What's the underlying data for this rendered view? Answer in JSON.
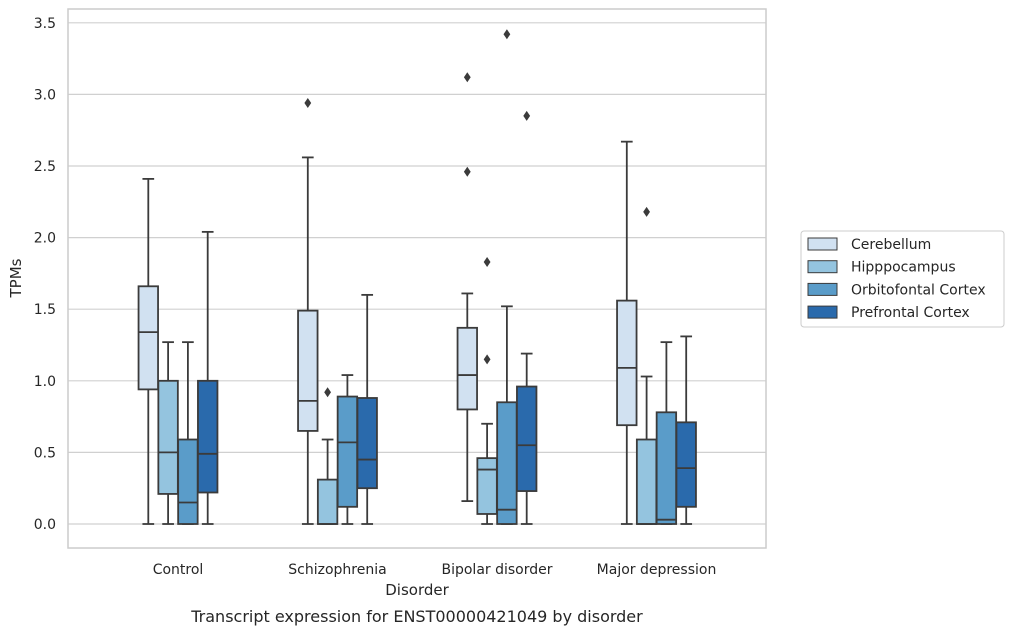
{
  "chart_data": {
    "type": "box",
    "title": "",
    "caption": "Transcript expression for ENST00000421049 by disorder",
    "xlabel": "Disorder",
    "ylabel": "TPMs",
    "ylim": [
      -0.16,
      3.6
    ],
    "yticks": [
      "0.0",
      "0.5",
      "1.0",
      "1.5",
      "2.0",
      "2.5",
      "3.0",
      "3.5"
    ],
    "grid": "horizontal",
    "legend_position": "right",
    "categories": [
      "Control",
      "Schizophrenia",
      "Bipolar disorder",
      "Major depression"
    ],
    "series": [
      {
        "name": "Cerebellum",
        "color": "#d1e1f1",
        "boxes": [
          {
            "whisker_low": 0.0,
            "q1": 0.94,
            "median": 1.34,
            "q3": 1.66,
            "whisker_high": 2.41,
            "outliers": []
          },
          {
            "whisker_low": 0.0,
            "q1": 0.65,
            "median": 0.86,
            "q3": 1.49,
            "whisker_high": 2.56,
            "outliers": [
              2.94
            ]
          },
          {
            "whisker_low": 0.16,
            "q1": 0.8,
            "median": 1.04,
            "q3": 1.37,
            "whisker_high": 1.61,
            "outliers": [
              2.46,
              3.12
            ]
          },
          {
            "whisker_low": 0.0,
            "q1": 0.69,
            "median": 1.09,
            "q3": 1.56,
            "whisker_high": 2.67,
            "outliers": []
          }
        ]
      },
      {
        "name": "Hipppocampus",
        "color": "#94c4df",
        "boxes": [
          {
            "whisker_low": 0.0,
            "q1": 0.21,
            "median": 0.5,
            "q3": 1.0,
            "whisker_high": 1.27,
            "outliers": []
          },
          {
            "whisker_low": 0.0,
            "q1": 0.0,
            "median": 0.0,
            "q3": 0.31,
            "whisker_high": 0.59,
            "outliers": [
              0.92
            ]
          },
          {
            "whisker_low": 0.0,
            "q1": 0.07,
            "median": 0.38,
            "q3": 0.46,
            "whisker_high": 0.7,
            "outliers": [
              1.15,
              1.83
            ]
          },
          {
            "whisker_low": 0.0,
            "q1": 0.0,
            "median": 0.0,
            "q3": 0.59,
            "whisker_high": 1.03,
            "outliers": [
              2.18
            ]
          }
        ]
      },
      {
        "name": "Orbitofontal Cortex",
        "color": "#5a9cc9",
        "boxes": [
          {
            "whisker_low": 0.0,
            "q1": 0.0,
            "median": 0.15,
            "q3": 0.59,
            "whisker_high": 1.27,
            "outliers": []
          },
          {
            "whisker_low": 0.0,
            "q1": 0.12,
            "median": 0.57,
            "q3": 0.89,
            "whisker_high": 1.04,
            "outliers": []
          },
          {
            "whisker_low": 0.0,
            "q1": 0.0,
            "median": 0.1,
            "q3": 0.85,
            "whisker_high": 1.52,
            "outliers": [
              3.42
            ]
          },
          {
            "whisker_low": 0.0,
            "q1": 0.0,
            "median": 0.03,
            "q3": 0.78,
            "whisker_high": 1.27,
            "outliers": []
          }
        ]
      },
      {
        "name": "Prefrontal Cortex",
        "color": "#2a6aac",
        "boxes": [
          {
            "whisker_low": 0.0,
            "q1": 0.22,
            "median": 0.49,
            "q3": 1.0,
            "whisker_high": 2.04,
            "outliers": []
          },
          {
            "whisker_low": 0.0,
            "q1": 0.25,
            "median": 0.45,
            "q3": 0.88,
            "whisker_high": 1.6,
            "outliers": []
          },
          {
            "whisker_low": 0.0,
            "q1": 0.23,
            "median": 0.55,
            "q3": 0.96,
            "whisker_high": 1.19,
            "outliers": [
              2.85
            ]
          },
          {
            "whisker_low": 0.0,
            "q1": 0.12,
            "median": 0.39,
            "q3": 0.71,
            "whisker_high": 1.31,
            "outliers": []
          }
        ]
      }
    ]
  }
}
